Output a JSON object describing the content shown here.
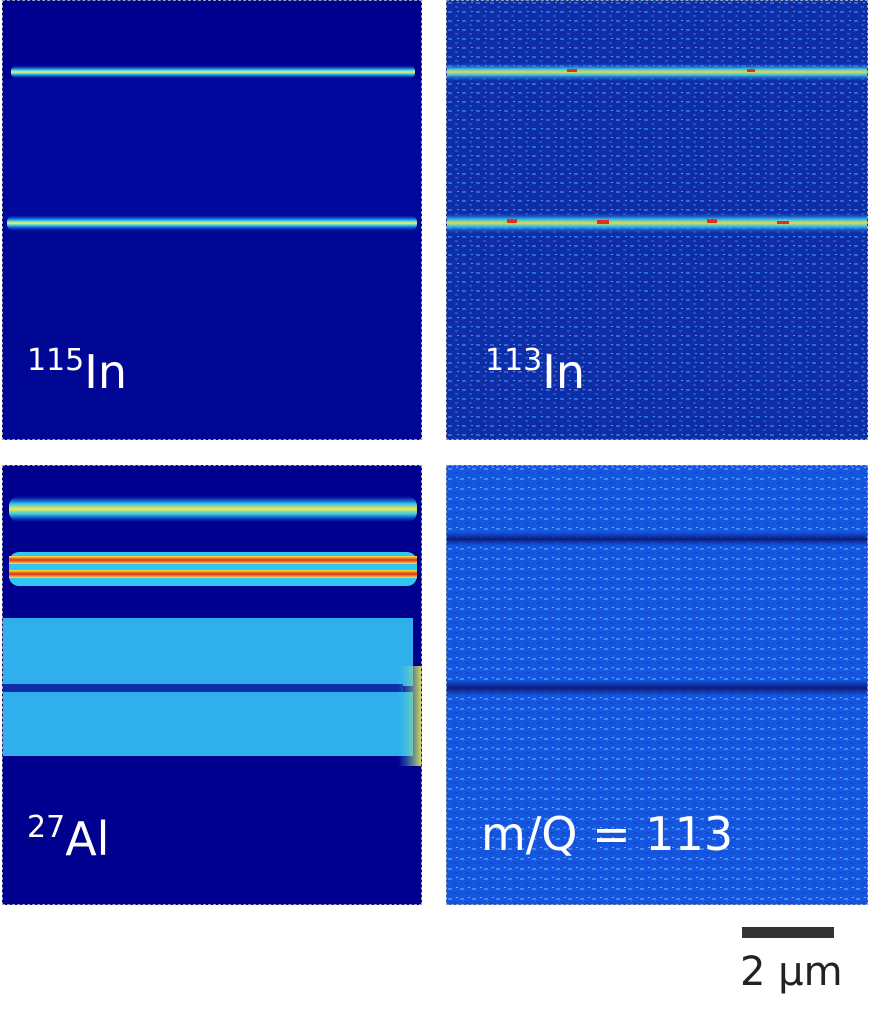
{
  "panels": [
    {
      "mass": "115",
      "element": "In",
      "text": ""
    },
    {
      "mass": "113",
      "element": "In",
      "text": ""
    },
    {
      "mass": "27",
      "element": "Al",
      "text": ""
    },
    {
      "mass": "",
      "element": "",
      "text": "m/Q = 113"
    }
  ],
  "scale_bar": {
    "label": "2 μm"
  },
  "colors": {
    "deep_blue": "#00008e",
    "blue": "#1556e0",
    "cyan": "#35d8f0",
    "yellow": "#f5e84a",
    "red": "#e0301a"
  }
}
